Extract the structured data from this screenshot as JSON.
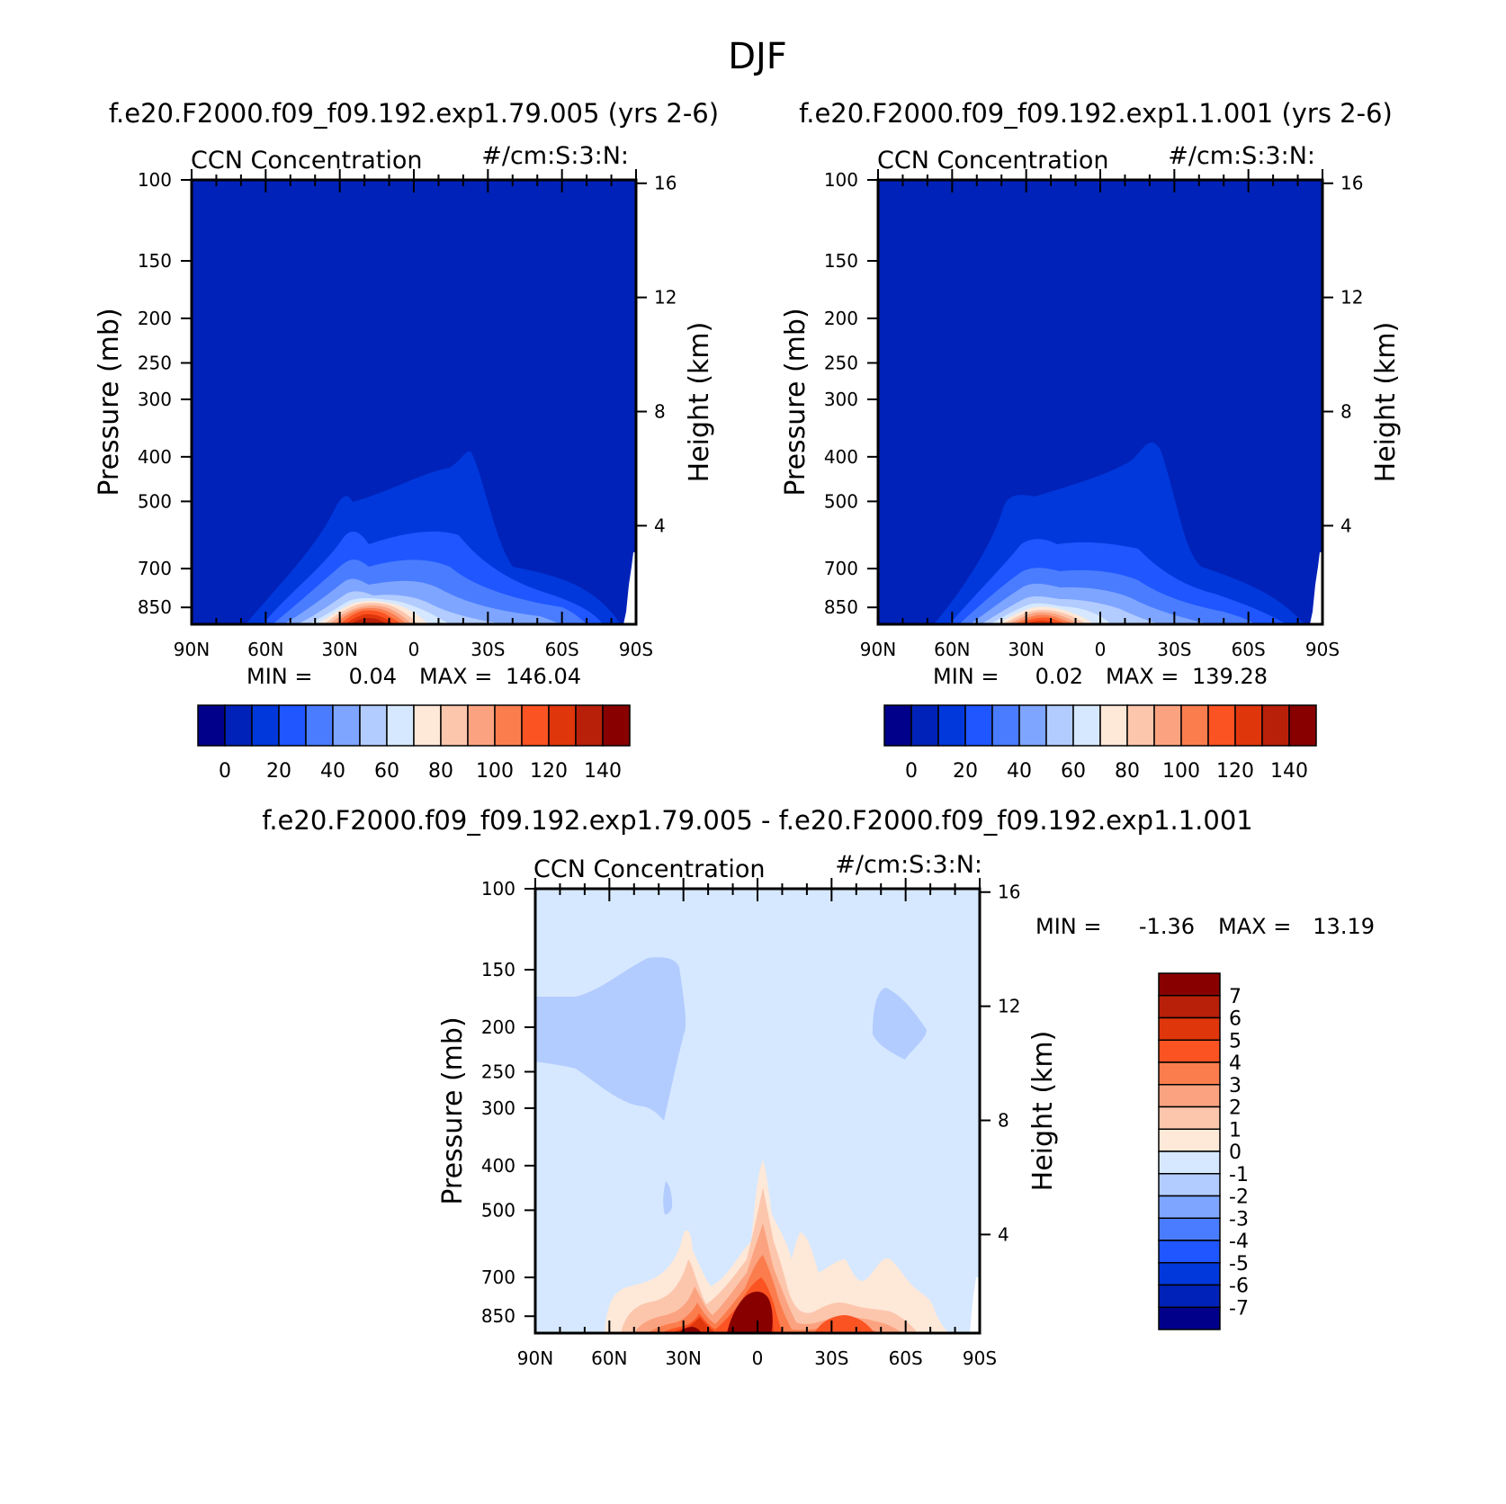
{
  "figure_title": "DJF",
  "chart_data": [
    {
      "type": "heatmap",
      "title": "f.e20.F2000.f09_f09.192.exp1.79.005 (yrs 2-6)",
      "left_string": "CCN Concentration",
      "right_string": "#/cm:S:3:N:",
      "ylabel": "Pressure (mb)",
      "ylabel_right": "Height (km)",
      "x_ticks": [
        "90N",
        "60N",
        "30N",
        "0",
        "30S",
        "60S",
        "90S"
      ],
      "y_ticks": [
        "100",
        "150",
        "200",
        "250",
        "300",
        "400",
        "500",
        "700",
        "850"
      ],
      "y_ticks_right": [
        "16",
        "12",
        "8",
        "4"
      ],
      "ylim_mb": [
        100,
        925
      ],
      "min_label": "MIN =",
      "min_value": "0.04",
      "max_label": "MAX =",
      "max_value": "146.04",
      "colorbar_labels": [
        "0",
        "20",
        "40",
        "60",
        "80",
        "100",
        "120",
        "140"
      ],
      "colors": [
        "#00008b",
        "#0022b8",
        "#0038db",
        "#1f56ff",
        "#4a7cff",
        "#7ea5ff",
        "#b2ccff",
        "#d6e8ff",
        "#fee8d8",
        "#fcc6ad",
        "#fba380",
        "#fb7d4e",
        "#fb5322",
        "#e0360c",
        "#b9200a",
        "#880000"
      ],
      "contour_levels": [
        0,
        10,
        20,
        30,
        40,
        50,
        60,
        70,
        80,
        90,
        100,
        110,
        120,
        130,
        140
      ]
    },
    {
      "type": "heatmap",
      "title": "f.e20.F2000.f09_f09.192.exp1.1.001 (yrs 2-6)",
      "left_string": "CCN Concentration",
      "right_string": "#/cm:S:3:N:",
      "ylabel": "Pressure (mb)",
      "ylabel_right": "Height (km)",
      "x_ticks": [
        "90N",
        "60N",
        "30N",
        "0",
        "30S",
        "60S",
        "90S"
      ],
      "y_ticks": [
        "100",
        "150",
        "200",
        "250",
        "300",
        "400",
        "500",
        "700",
        "850"
      ],
      "y_ticks_right": [
        "16",
        "12",
        "8",
        "4"
      ],
      "ylim_mb": [
        100,
        925
      ],
      "min_label": "MIN =",
      "min_value": "0.02",
      "max_label": "MAX =",
      "max_value": "139.28",
      "colorbar_labels": [
        "0",
        "20",
        "40",
        "60",
        "80",
        "100",
        "120",
        "140"
      ],
      "colors": [
        "#00008b",
        "#0022b8",
        "#0038db",
        "#1f56ff",
        "#4a7cff",
        "#7ea5ff",
        "#b2ccff",
        "#d6e8ff",
        "#fee8d8",
        "#fcc6ad",
        "#fba380",
        "#fb7d4e",
        "#fb5322",
        "#e0360c",
        "#b9200a",
        "#880000"
      ],
      "contour_levels": [
        0,
        10,
        20,
        30,
        40,
        50,
        60,
        70,
        80,
        90,
        100,
        110,
        120,
        130,
        140
      ]
    },
    {
      "type": "heatmap",
      "title": "f.e20.F2000.f09_f09.192.exp1.79.005 - f.e20.F2000.f09_f09.192.exp1.1.001",
      "left_string": "CCN Concentration",
      "right_string": "#/cm:S:3:N:",
      "ylabel": "Pressure (mb)",
      "ylabel_right": "Height (km)",
      "x_ticks": [
        "90N",
        "60N",
        "30N",
        "0",
        "30S",
        "60S",
        "90S"
      ],
      "y_ticks": [
        "100",
        "150",
        "200",
        "250",
        "300",
        "400",
        "500",
        "700",
        "850"
      ],
      "y_ticks_right": [
        "16",
        "12",
        "8",
        "4"
      ],
      "ylim_mb": [
        100,
        925
      ],
      "min_label": "MIN =",
      "min_value": "-1.36",
      "max_label": "MAX =",
      "max_value": "13.19",
      "colorbar_labels": [
        "7",
        "6",
        "5",
        "4",
        "3",
        "2",
        "1",
        "0",
        "-1",
        "-2",
        "-3",
        "-4",
        "-5",
        "-6",
        "-7"
      ],
      "colors": [
        "#880000",
        "#b9200a",
        "#e0360c",
        "#fb5322",
        "#fb7d4e",
        "#fba380",
        "#fcc6ad",
        "#fee8d8",
        "#d6e8ff",
        "#b2ccff",
        "#7ea5ff",
        "#4a7cff",
        "#1f56ff",
        "#0038db",
        "#0022b8",
        "#00008b"
      ],
      "contour_levels": [
        -7,
        -6,
        -5,
        -4,
        -3,
        -2,
        -1,
        0,
        1,
        2,
        3,
        4,
        5,
        6,
        7
      ]
    }
  ]
}
